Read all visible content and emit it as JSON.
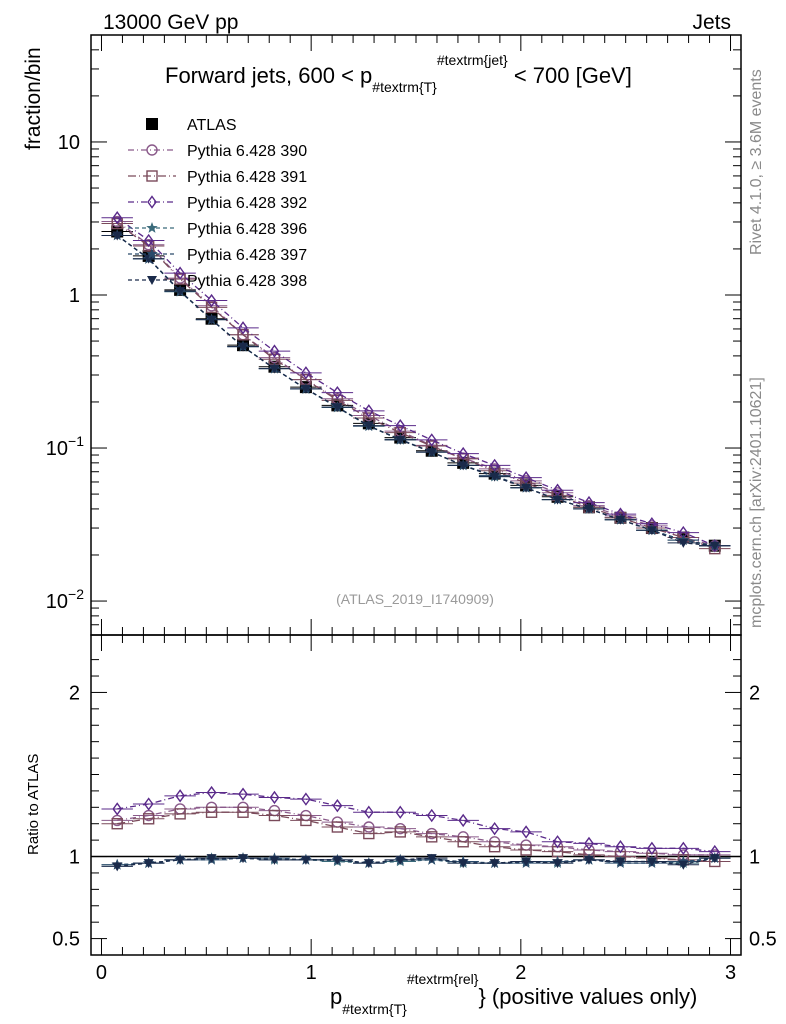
{
  "header": {
    "left": "13000 GeV pp",
    "right": "Jets"
  },
  "side_labels": {
    "rivet": "Rivet 4.1.0, ≥ 3.6M events",
    "mcplots": "mcplots.cern.ch [arXiv:2401.10621]"
  },
  "colors": {
    "data": "#000000",
    "p390": "#8a5a8a",
    "p391": "#7a4a5a",
    "p392": "#5a2a8a",
    "p396": "#3a6a7a",
    "p397": "#2a4a6a",
    "p398": "#1a2a4a"
  },
  "chart_data": [
    {
      "type": "scatter",
      "panel": "main",
      "title_prefix": "Forward jets, 600 < p",
      "title_sub": "#textrm{T}",
      "title_sup": "#textrm{jet}",
      "title_suffix": " < 700 [GeV]",
      "ylabel": "fraction/bin",
      "yscale": "log",
      "ylim": [
        0.006,
        50
      ],
      "xlim": [
        -0.05,
        3.05
      ],
      "y_ticks": [
        {
          "value": 10,
          "label": "10",
          "sup": ""
        },
        {
          "value": 1,
          "label": "1",
          "sup": ""
        },
        {
          "value": 0.1,
          "label": "10",
          "sup": "−1"
        },
        {
          "value": 0.01,
          "label": "10",
          "sup": "−2"
        }
      ],
      "watermark": "(ATLAS_2019_I1740909)",
      "x": [
        0.075,
        0.225,
        0.375,
        0.525,
        0.675,
        0.825,
        0.975,
        1.125,
        1.275,
        1.425,
        1.575,
        1.725,
        1.875,
        2.025,
        2.175,
        2.325,
        2.475,
        2.625,
        2.775,
        2.925
      ],
      "series": [
        {
          "name": "ATLAS",
          "key": "data",
          "marker": "square",
          "dash": "none",
          "values": [
            2.6,
            1.8,
            1.08,
            0.7,
            0.47,
            0.34,
            0.25,
            0.19,
            0.145,
            0.117,
            0.096,
            0.08,
            0.068,
            0.057,
            0.048,
            0.041,
            0.035,
            0.03,
            0.026,
            0.023
          ]
        },
        {
          "name": "Pythia 6.428 390",
          "key": "p390",
          "marker": "circle",
          "dash": "6,3,1,3",
          "values": [
            3.02,
            2.13,
            1.29,
            0.85,
            0.55,
            0.39,
            0.28,
            0.21,
            0.163,
            0.129,
            0.104,
            0.086,
            0.073,
            0.061,
            0.051,
            0.042,
            0.036,
            0.031,
            0.026,
            0.023
          ]
        },
        {
          "name": "Pythia 6.428 391",
          "key": "p391",
          "marker": "square-open",
          "dash": "8,3,1,3",
          "values": [
            2.93,
            2.09,
            1.27,
            0.83,
            0.55,
            0.38,
            0.28,
            0.205,
            0.157,
            0.126,
            0.103,
            0.085,
            0.071,
            0.059,
            0.049,
            0.041,
            0.035,
            0.03,
            0.026,
            0.022
          ]
        },
        {
          "name": "Pythia 6.428 392",
          "key": "p392",
          "marker": "diamond",
          "dash": "6,3,1,3",
          "values": [
            3.2,
            2.27,
            1.39,
            0.92,
            0.61,
            0.43,
            0.31,
            0.23,
            0.175,
            0.14,
            0.113,
            0.092,
            0.077,
            0.064,
            0.053,
            0.044,
            0.037,
            0.032,
            0.028,
            0.023
          ]
        },
        {
          "name": "Pythia 6.428 396",
          "key": "p396",
          "marker": "star",
          "dash": "4,3",
          "values": [
            2.45,
            1.72,
            1.05,
            0.69,
            0.46,
            0.33,
            0.243,
            0.184,
            0.139,
            0.113,
            0.094,
            0.077,
            0.065,
            0.055,
            0.046,
            0.04,
            0.034,
            0.029,
            0.025,
            0.023
          ]
        },
        {
          "name": "Pythia 6.428 397",
          "key": "p397",
          "marker": "star",
          "dash": "4,3",
          "values": [
            2.45,
            1.72,
            1.06,
            0.69,
            0.46,
            0.33,
            0.243,
            0.185,
            0.139,
            0.114,
            0.094,
            0.077,
            0.066,
            0.055,
            0.046,
            0.04,
            0.034,
            0.029,
            0.025,
            0.023
          ]
        },
        {
          "name": "Pythia 6.428 398",
          "key": "p398",
          "marker": "triangle-down",
          "dash": "4,3",
          "values": [
            2.45,
            1.73,
            1.06,
            0.69,
            0.46,
            0.33,
            0.244,
            0.185,
            0.14,
            0.113,
            0.094,
            0.077,
            0.065,
            0.055,
            0.046,
            0.04,
            0.034,
            0.029,
            0.024,
            0.023
          ]
        }
      ]
    },
    {
      "type": "scatter",
      "panel": "ratio",
      "ylabel": "Ratio to ATLAS",
      "xlabel_main": "p",
      "xlabel_sub": "#textrm{T}",
      "xlabel_sup": "#textrm{rel}",
      "xlabel_suffix": "} (positive values only)",
      "ylim": [
        0.4,
        2.35
      ],
      "xlim": [
        -0.05,
        3.05
      ],
      "y_ticks": [
        {
          "value": 0.5,
          "label": "0.5"
        },
        {
          "value": 1,
          "label": "1"
        },
        {
          "value": 2,
          "label": "2"
        }
      ],
      "x_ticks": [
        {
          "value": 0,
          "label": "0"
        },
        {
          "value": 1,
          "label": "1"
        },
        {
          "value": 2,
          "label": "2"
        },
        {
          "value": 3,
          "label": "3"
        }
      ],
      "x": [
        0.075,
        0.225,
        0.375,
        0.525,
        0.675,
        0.825,
        0.975,
        1.125,
        1.275,
        1.425,
        1.575,
        1.725,
        1.875,
        2.025,
        2.175,
        2.325,
        2.475,
        2.625,
        2.775,
        2.925
      ],
      "series": [
        {
          "name": "Pythia 6.428 390",
          "key": "p390",
          "marker": "circle",
          "dash": "6,3,1,3",
          "values": [
            1.22,
            1.25,
            1.29,
            1.3,
            1.3,
            1.28,
            1.25,
            1.21,
            1.18,
            1.17,
            1.14,
            1.12,
            1.09,
            1.07,
            1.06,
            1.04,
            1.03,
            1.02,
            1.01,
            1.01
          ]
        },
        {
          "name": "Pythia 6.428 391",
          "key": "p391",
          "marker": "square-open",
          "dash": "8,3,1,3",
          "values": [
            1.2,
            1.23,
            1.26,
            1.27,
            1.27,
            1.25,
            1.22,
            1.18,
            1.14,
            1.15,
            1.12,
            1.09,
            1.06,
            1.04,
            1.03,
            1.01,
            1.0,
            0.99,
            0.98,
            0.97
          ]
        },
        {
          "name": "Pythia 6.428 392",
          "key": "p392",
          "marker": "diamond",
          "dash": "6,3,1,3",
          "values": [
            1.29,
            1.32,
            1.37,
            1.39,
            1.38,
            1.36,
            1.35,
            1.31,
            1.27,
            1.27,
            1.25,
            1.22,
            1.17,
            1.15,
            1.09,
            1.08,
            1.06,
            1.05,
            1.05,
            1.03
          ]
        },
        {
          "name": "Pythia 6.428 396",
          "key": "p396",
          "marker": "star",
          "dash": "4,3",
          "values": [
            0.95,
            0.96,
            0.98,
            0.99,
            0.99,
            0.98,
            0.98,
            0.97,
            0.96,
            0.97,
            0.98,
            0.96,
            0.96,
            0.97,
            0.96,
            0.98,
            0.97,
            0.97,
            0.96,
            0.99
          ]
        },
        {
          "name": "Pythia 6.428 397",
          "key": "p397",
          "marker": "star",
          "dash": "4,3",
          "values": [
            0.95,
            0.96,
            0.98,
            0.98,
            0.99,
            0.99,
            0.98,
            0.98,
            0.96,
            0.98,
            0.98,
            0.97,
            0.96,
            0.96,
            0.97,
            0.98,
            0.96,
            0.96,
            0.97,
            0.99
          ]
        },
        {
          "name": "Pythia 6.428 398",
          "key": "p398",
          "marker": "triangle-down",
          "dash": "4,3",
          "values": [
            0.94,
            0.96,
            0.98,
            0.99,
            0.99,
            0.98,
            0.98,
            0.98,
            0.96,
            0.98,
            0.99,
            0.96,
            0.96,
            0.97,
            0.96,
            0.98,
            0.97,
            0.97,
            0.95,
            0.99
          ]
        }
      ]
    }
  ]
}
